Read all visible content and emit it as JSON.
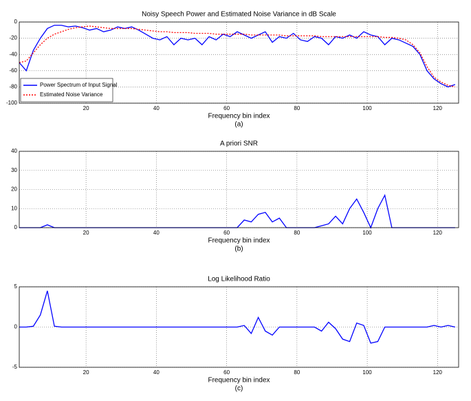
{
  "chart_data": [
    {
      "type": "line",
      "title": "Noisy Speech Power and Estimated Noise Variance in dB Scale",
      "x_label": "Frequency bin index",
      "caption": "(a)",
      "x": [
        1,
        3,
        5,
        7,
        9,
        11,
        13,
        15,
        17,
        19,
        21,
        23,
        25,
        27,
        29,
        31,
        33,
        35,
        37,
        39,
        41,
        43,
        45,
        47,
        49,
        51,
        53,
        55,
        57,
        59,
        61,
        63,
        65,
        67,
        69,
        71,
        73,
        75,
        77,
        79,
        81,
        83,
        85,
        87,
        89,
        91,
        93,
        95,
        97,
        99,
        101,
        103,
        105,
        107,
        109,
        111,
        113,
        115,
        117,
        119,
        121,
        123,
        125
      ],
      "series": [
        {
          "name": "Power Spectrum of Input Signal",
          "color": "#0000ff",
          "linestyle": "solid",
          "values": [
            -50,
            -60,
            -35,
            -20,
            -8,
            -4,
            -4,
            -6,
            -5,
            -7,
            -10,
            -8,
            -12,
            -10,
            -6,
            -8,
            -6,
            -10,
            -15,
            -20,
            -22,
            -18,
            -28,
            -20,
            -22,
            -20,
            -28,
            -18,
            -22,
            -15,
            -18,
            -12,
            -16,
            -20,
            -16,
            -12,
            -25,
            -18,
            -20,
            -14,
            -22,
            -24,
            -18,
            -20,
            -28,
            -18,
            -20,
            -16,
            -20,
            -12,
            -16,
            -18,
            -28,
            -20,
            -22,
            -26,
            -30,
            -40,
            -60,
            -70,
            -76,
            -80,
            -77
          ]
        },
        {
          "name": "Estimated Noise Variance",
          "color": "#ff0000",
          "linestyle": "dotted",
          "values": [
            -50,
            -48,
            -38,
            -28,
            -20,
            -15,
            -12,
            -9,
            -7,
            -6,
            -5,
            -6,
            -7,
            -8,
            -8,
            -8,
            -8,
            -9,
            -10,
            -11,
            -12,
            -12,
            -13,
            -13,
            -13,
            -14,
            -14,
            -14,
            -15,
            -15,
            -15,
            -15,
            -15,
            -16,
            -16,
            -16,
            -16,
            -16,
            -17,
            -17,
            -17,
            -17,
            -17,
            -18,
            -18,
            -18,
            -18,
            -18,
            -18,
            -18,
            -18,
            -18,
            -19,
            -19,
            -20,
            -22,
            -28,
            -38,
            -55,
            -68,
            -74,
            -78,
            -80
          ]
        }
      ],
      "xlim": [
        1,
        126
      ],
      "xticks": [
        20,
        40,
        60,
        80,
        100,
        120
      ],
      "ylim": [
        -100,
        0
      ],
      "yticks": [
        -100,
        -80,
        -60,
        -40,
        -20,
        0
      ],
      "grid": true,
      "legend": "lower left"
    },
    {
      "type": "line",
      "title": "A priori SNR",
      "x_label": "Frequency bin index",
      "caption": "(b)",
      "x": [
        1,
        3,
        5,
        7,
        9,
        11,
        13,
        15,
        17,
        19,
        21,
        23,
        25,
        27,
        29,
        31,
        33,
        35,
        37,
        39,
        41,
        43,
        45,
        47,
        49,
        51,
        53,
        55,
        57,
        59,
        61,
        63,
        65,
        67,
        69,
        71,
        73,
        75,
        77,
        79,
        81,
        83,
        85,
        87,
        89,
        91,
        93,
        95,
        97,
        99,
        101,
        103,
        105,
        107,
        109,
        111,
        113,
        115,
        117,
        119,
        121,
        123,
        125
      ],
      "series": [
        {
          "color": "#0000ff",
          "linestyle": "solid",
          "values": [
            0,
            0,
            0,
            0,
            1.5,
            0,
            0,
            0,
            0,
            0,
            0,
            0,
            0,
            0,
            0,
            0,
            0,
            0,
            0,
            0,
            0,
            0,
            0,
            0,
            0,
            0,
            0,
            0,
            0,
            0,
            0,
            0,
            4,
            3,
            7,
            8,
            3,
            5,
            0,
            0,
            0,
            0,
            0,
            1,
            2,
            6,
            2,
            10,
            15,
            8,
            0,
            10,
            17,
            0,
            0,
            0,
            0,
            0,
            0,
            0,
            0,
            0,
            0
          ]
        }
      ],
      "xlim": [
        1,
        126
      ],
      "xticks": [
        20,
        40,
        60,
        80,
        100,
        120
      ],
      "ylim": [
        0,
        40
      ],
      "yticks": [
        0,
        10,
        20,
        30,
        40
      ],
      "grid": true
    },
    {
      "type": "line",
      "title": "Log Likelihood Ratio",
      "x_label": "Frequency bin index",
      "caption": "(c)",
      "x": [
        1,
        3,
        5,
        7,
        9,
        11,
        13,
        15,
        17,
        19,
        21,
        23,
        25,
        27,
        29,
        31,
        33,
        35,
        37,
        39,
        41,
        43,
        45,
        47,
        49,
        51,
        53,
        55,
        57,
        59,
        61,
        63,
        65,
        67,
        69,
        71,
        73,
        75,
        77,
        79,
        81,
        83,
        85,
        87,
        89,
        91,
        93,
        95,
        97,
        99,
        101,
        103,
        105,
        107,
        109,
        111,
        113,
        115,
        117,
        119,
        121,
        123,
        125
      ],
      "series": [
        {
          "color": "#0000ff",
          "linestyle": "solid",
          "values": [
            0,
            0,
            0.1,
            1.5,
            4.5,
            0.1,
            0,
            0,
            0,
            0,
            0,
            0,
            0,
            0,
            0,
            0,
            0,
            0,
            0,
            0,
            0,
            0,
            0,
            0,
            0,
            0,
            0,
            0,
            0,
            0,
            0,
            0,
            0.2,
            -0.8,
            1.2,
            -0.5,
            -1,
            0,
            0,
            0,
            0,
            0,
            0,
            -0.5,
            0.6,
            -0.2,
            -1.5,
            -1.8,
            0.5,
            0.2,
            -2,
            -1.8,
            0,
            0,
            0,
            0,
            0,
            0,
            0,
            0.2,
            0,
            0.2,
            0
          ]
        }
      ],
      "xlim": [
        1,
        126
      ],
      "xticks": [
        20,
        40,
        60,
        80,
        100,
        120
      ],
      "ylim": [
        -5,
        5
      ],
      "yticks": [
        -5,
        0,
        5
      ],
      "grid": true
    }
  ]
}
